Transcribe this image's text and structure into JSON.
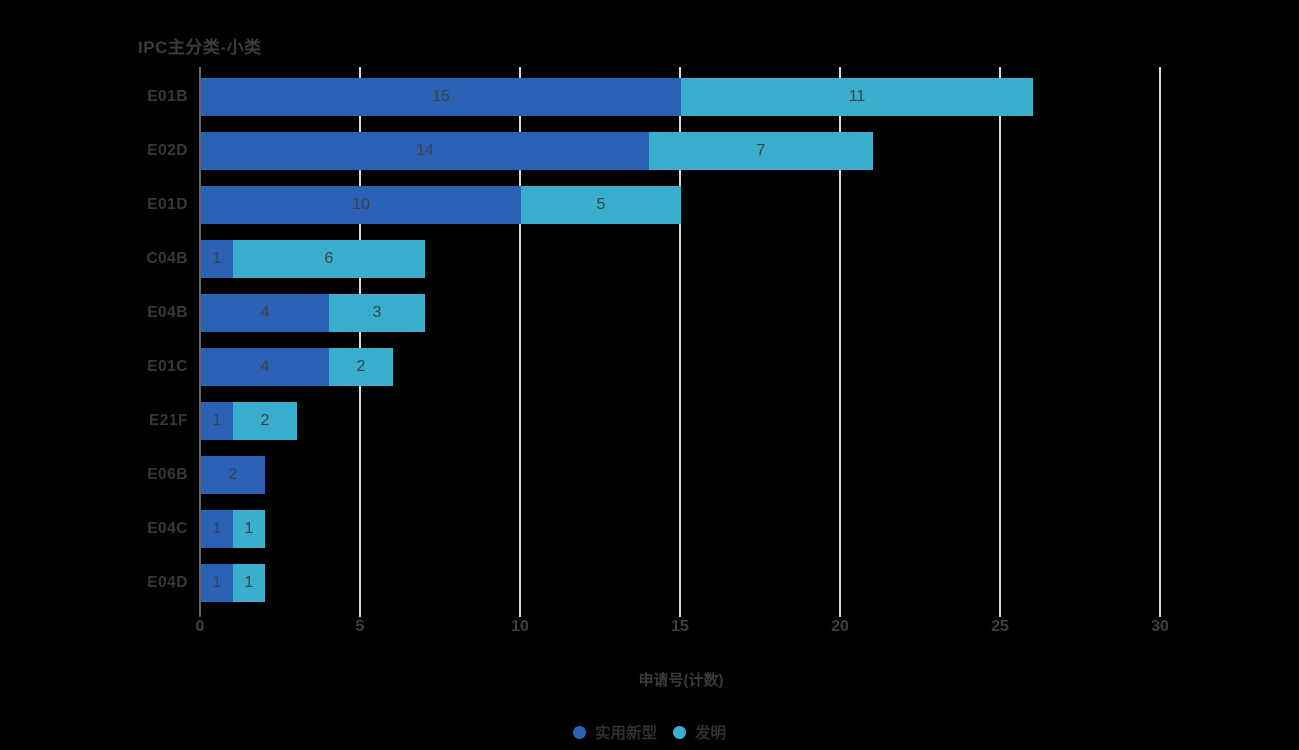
{
  "title": "IPC主分类-小类",
  "x_axis": {
    "label": "申请号(计数)",
    "ticks": [
      0,
      5,
      10,
      15,
      20,
      25,
      30
    ],
    "min": 0,
    "max": 30
  },
  "legend": {
    "items": [
      {
        "label": "实用新型",
        "color": "#2a61b4"
      },
      {
        "label": "发明",
        "color": "#39aecd"
      }
    ]
  },
  "colors": {
    "series_utility_model": "#2a61b4",
    "series_invention": "#39aecd",
    "gridline": "#d3dce6",
    "axis_line": "#63666b",
    "title_text": "#3c3c3c",
    "category_text": "#383838",
    "value_text": "#3c4147",
    "tick_text": "#3b3e43",
    "background": "#000000"
  },
  "chart_data": {
    "type": "bar",
    "orientation": "horizontal",
    "stacked": true,
    "title": "IPC主分类-小类",
    "xlabel": "申请号(计数)",
    "xlim": [
      0,
      30
    ],
    "x_ticks": [
      0,
      5,
      10,
      15,
      20,
      25,
      30
    ],
    "grid": true,
    "legend_position": "bottom",
    "categories": [
      "E01B",
      "E02D",
      "E01D",
      "C04B",
      "E04B",
      "E01C",
      "E21F",
      "E06B",
      "E04C",
      "E04D"
    ],
    "series": [
      {
        "name": "实用新型",
        "color": "#2a61b4",
        "values": [
          15,
          14,
          10,
          1,
          4,
          4,
          1,
          2,
          1,
          1
        ]
      },
      {
        "name": "发明",
        "color": "#39aecd",
        "values": [
          11,
          7,
          5,
          6,
          3,
          2,
          2,
          0,
          1,
          1
        ]
      }
    ],
    "totals": [
      26,
      21,
      15,
      7,
      7,
      6,
      3,
      2,
      2,
      2
    ]
  }
}
